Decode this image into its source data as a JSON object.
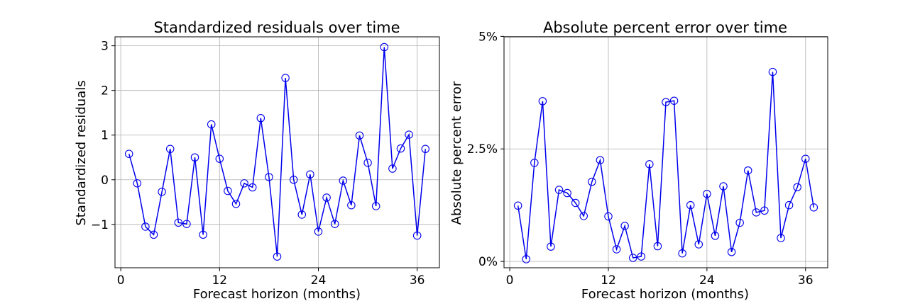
{
  "chart_data": [
    {
      "type": "line",
      "title": "Standardized residuals over time",
      "xlabel": "Forecast horizon (months)",
      "ylabel": "Standardized residuals",
      "xlim": [
        -0.7,
        38.7
      ],
      "ylim": [
        -1.97,
        3.2
      ],
      "xticks": [
        0,
        12,
        24,
        36
      ],
      "xtick_labels": [
        "0",
        "12",
        "24",
        "36"
      ],
      "yticks": [
        -1,
        0,
        1,
        2,
        3
      ],
      "ytick_labels": [
        "−1",
        "0",
        "1",
        "2",
        "3"
      ],
      "grid": true,
      "color": "#0000ee",
      "marker": "open-circle",
      "x": [
        1,
        2,
        3,
        4,
        5,
        6,
        7,
        8,
        9,
        10,
        11,
        12,
        13,
        14,
        15,
        16,
        17,
        18,
        19,
        20,
        21,
        22,
        23,
        24,
        25,
        26,
        27,
        28,
        29,
        30,
        31,
        32,
        33,
        34,
        35,
        36,
        37
      ],
      "values": [
        0.58,
        -0.08,
        -1.05,
        -1.23,
        -0.27,
        0.69,
        -0.96,
        -0.99,
        0.5,
        -1.23,
        1.24,
        0.47,
        -0.25,
        -0.54,
        -0.08,
        -0.17,
        1.38,
        0.06,
        -1.72,
        2.28,
        0.0,
        -0.78,
        0.12,
        -1.16,
        -0.4,
        -0.99,
        -0.02,
        -0.57,
        0.99,
        0.38,
        -0.59,
        2.97,
        0.25,
        0.7,
        1.01,
        -1.25,
        0.69
      ]
    },
    {
      "type": "line",
      "title": "Absolute percent error over time",
      "xlabel": "Forecast horizon (months)",
      "ylabel": "Absolute percent error",
      "xlim": [
        -0.7,
        38.7
      ],
      "ylim": [
        -0.0014,
        0.0499
      ],
      "xticks": [
        0,
        12,
        24,
        36
      ],
      "xtick_labels": [
        "0",
        "12",
        "24",
        "36"
      ],
      "yticks": [
        0,
        0.025,
        0.05
      ],
      "ytick_labels": [
        "0%",
        "2.5%",
        "5%"
      ],
      "grid": true,
      "color": "#0000ee",
      "marker": "open-circle",
      "x": [
        1,
        2,
        3,
        4,
        5,
        6,
        7,
        8,
        9,
        10,
        11,
        12,
        13,
        14,
        15,
        16,
        17,
        18,
        19,
        20,
        21,
        22,
        23,
        24,
        25,
        26,
        27,
        28,
        29,
        30,
        31,
        32,
        33,
        34,
        35,
        36,
        37
      ],
      "values": [
        0.0124,
        0.0005,
        0.0219,
        0.0356,
        0.0033,
        0.0159,
        0.0152,
        0.013,
        0.0101,
        0.0177,
        0.0225,
        0.01,
        0.0027,
        0.0079,
        0.0008,
        0.0011,
        0.0216,
        0.0034,
        0.0354,
        0.0357,
        0.0018,
        0.0125,
        0.0038,
        0.015,
        0.0057,
        0.0167,
        0.0021,
        0.0086,
        0.0202,
        0.0109,
        0.0113,
        0.0421,
        0.0052,
        0.0125,
        0.0165,
        0.0228,
        0.012
      ]
    }
  ]
}
